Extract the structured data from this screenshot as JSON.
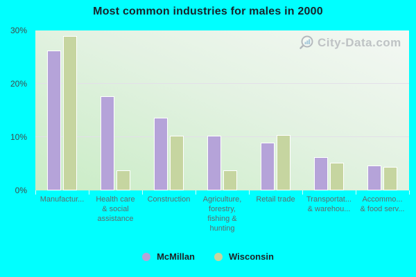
{
  "title": "Most common industries for males in 2000",
  "watermark": {
    "text": "City-Data.com",
    "icon": "magnifier-barchart-icon"
  },
  "colors": {
    "background": "#00ffff",
    "plot_gradient_top": "#f4f8f4",
    "plot_gradient_bottom": "#c9ecc5",
    "gridline": "#e3dfe9",
    "bar_border": "#ffffff",
    "mcmillan": "#b5a3d9",
    "wisconsin": "#c6d5a0"
  },
  "chart_data": {
    "type": "bar",
    "title": "Most common industries for males in 2000",
    "categories": [
      "Manufactur...",
      "Health care & social assistance",
      "Construction",
      "Agriculture, forestry, fishing & hunting",
      "Retail trade",
      "Transportat... & warehou...",
      "Accommo... & food serv..."
    ],
    "category_display_lines": [
      [
        "Manufactur..."
      ],
      [
        "Health care",
        "& social",
        "assistance"
      ],
      [
        "Construction"
      ],
      [
        "Agriculture,",
        "forestry,",
        "fishing &",
        "hunting"
      ],
      [
        "Retail trade"
      ],
      [
        "Transportat...",
        "& warehou..."
      ],
      [
        "Accommo...",
        "& food serv..."
      ]
    ],
    "series": [
      {
        "name": "McMillan",
        "color": "#b5a3d9",
        "values": [
          26.2,
          17.7,
          13.6,
          10.2,
          8.9,
          6.3,
          4.7
        ]
      },
      {
        "name": "Wisconsin",
        "color": "#c6d5a0",
        "values": [
          29.0,
          3.8,
          10.2,
          3.8,
          10.4,
          5.2,
          4.4
        ]
      }
    ],
    "xlabel": "",
    "ylabel": "",
    "ylim": [
      0,
      30
    ],
    "ytick_values": [
      0,
      10,
      20,
      30
    ],
    "ytick_labels": [
      "0%",
      "10%",
      "20%",
      "30%"
    ],
    "grid": true,
    "legend_position": "bottom"
  }
}
